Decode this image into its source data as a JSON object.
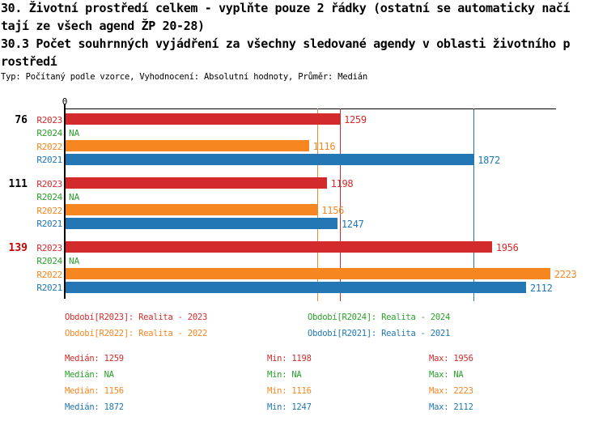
{
  "header": {
    "title_lines": [
      "30. Životní prostředí celkem - vyplňte pouze 2 řádky (ostatní se automaticky načí",
      "tají ze všech agend ŽP 20-28)",
      "30.3 Počet souhrnných vyjádření za všechny sledované agendy v oblasti životního p",
      "rostředí"
    ],
    "subtitle": "Typ: Počítaný podle vzorce, Vyhodnocení: Absolutní hodnoty, Průměr: Medián"
  },
  "chart_data": {
    "type": "bar",
    "orientation": "horizontal",
    "title": "30.3 Počet souhrnných vyjádření za všechny sledované agendy v oblasti životního prostředí",
    "axis": {
      "origin_label": "0",
      "xlim": [
        0,
        2250
      ],
      "grid": false
    },
    "na_text": "NA",
    "series": [
      {
        "key": "R2023",
        "color": "#d32b2b",
        "legend": "Období[R2023]: Realita - 2023"
      },
      {
        "key": "R2024",
        "color": "#2ca02c",
        "legend": "Období[R2024]: Realita - 2024"
      },
      {
        "key": "R2022",
        "color": "#f6861f",
        "legend": "Období[R2022]: Realita - 2022"
      },
      {
        "key": "R2021",
        "color": "#2277b4",
        "legend": "Období[R2021]: Realita - 2021"
      }
    ],
    "row_order": [
      "R2023",
      "R2024",
      "R2022",
      "R2021"
    ],
    "groups": [
      {
        "label": "76",
        "label_color": "#000000",
        "values": {
          "R2023": 1259,
          "R2024": "NA",
          "R2022": 1116,
          "R2021": 1872
        }
      },
      {
        "label": "111",
        "label_color": "#000000",
        "values": {
          "R2023": 1198,
          "R2024": "NA",
          "R2022": 1156,
          "R2021": 1247
        }
      },
      {
        "label": "139",
        "label_color": "#cc0000",
        "values": {
          "R2023": 1956,
          "R2024": "NA",
          "R2022": 2223,
          "R2021": 2112
        }
      }
    ],
    "median_lines": [
      {
        "series": "R2023",
        "value": 1259
      },
      {
        "series": "R2022",
        "value": 1156
      },
      {
        "series": "R2021",
        "value": 1872
      }
    ],
    "legend_position": "bottom",
    "stats_labels": {
      "median": "Medián",
      "min": "Min",
      "max": "Max"
    },
    "stats": [
      {
        "series": "R2023",
        "median": "1259",
        "min": "1198",
        "max": "1956"
      },
      {
        "series": "R2024",
        "median": "NA",
        "min": "NA",
        "max": "NA"
      },
      {
        "series": "R2022",
        "median": "1156",
        "min": "1116",
        "max": "2223"
      },
      {
        "series": "R2021",
        "median": "1872",
        "min": "1247",
        "max": "2112"
      }
    ]
  }
}
